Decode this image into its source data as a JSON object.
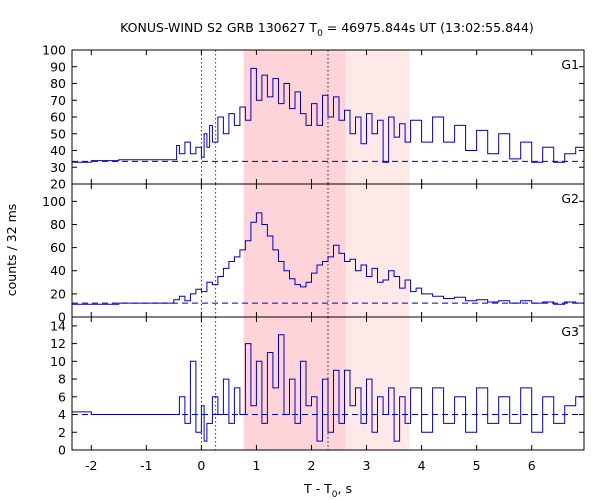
{
  "chart_data": {
    "type": "line",
    "title": {
      "prefix": "KONUS-WIND S2 GRB 130627 T",
      "sub": "0",
      "suffix": " = 46975.844s UT (13:02:55.844)"
    },
    "xlabel": {
      "prefix": "T - T",
      "sub": "0",
      "suffix": ", s"
    },
    "ylabel": "counts / 32 ms",
    "xlim": [
      -2.35,
      6.95
    ],
    "x_ticks": [
      -2,
      -1,
      0,
      1,
      2,
      3,
      4,
      5,
      6
    ],
    "colors": {
      "line": "#0000c0",
      "band_light": "#ffe8e8",
      "band_dark": "#ffd4d8",
      "frame": "#000000",
      "guides": "#000000"
    },
    "shaded_intervals": [
      {
        "x": [
          0.77,
          3.78
        ],
        "shade": "light"
      },
      {
        "x": [
          0.77,
          2.62
        ],
        "shade": "dark"
      }
    ],
    "vertical_markers": [
      0.0,
      0.26,
      2.3
    ],
    "grid": false,
    "panels": [
      {
        "label": "G1",
        "ylim": [
          20,
          100
        ],
        "y_ticks": [
          20,
          30,
          40,
          50,
          60,
          70,
          80,
          90,
          100
        ],
        "background_level": 33.5,
        "series": [
          {
            "x": -2.35,
            "y": 33
          },
          {
            "x": -2.0,
            "y": 34
          },
          {
            "x": -1.5,
            "y": 34.5
          },
          {
            "x": -1.0,
            "y": 34.5
          },
          {
            "x": -0.5,
            "y": 34.5
          },
          {
            "x": -0.45,
            "y": 43
          },
          {
            "x": -0.4,
            "y": 38
          },
          {
            "x": -0.3,
            "y": 45
          },
          {
            "x": -0.2,
            "y": 38
          },
          {
            "x": -0.1,
            "y": 42
          },
          {
            "x": 0.0,
            "y": 36
          },
          {
            "x": 0.05,
            "y": 50
          },
          {
            "x": 0.1,
            "y": 42
          },
          {
            "x": 0.15,
            "y": 55
          },
          {
            "x": 0.2,
            "y": 45
          },
          {
            "x": 0.3,
            "y": 60
          },
          {
            "x": 0.4,
            "y": 50
          },
          {
            "x": 0.5,
            "y": 62
          },
          {
            "x": 0.6,
            "y": 55
          },
          {
            "x": 0.7,
            "y": 66
          },
          {
            "x": 0.8,
            "y": 58
          },
          {
            "x": 0.9,
            "y": 89
          },
          {
            "x": 1.0,
            "y": 70
          },
          {
            "x": 1.1,
            "y": 85
          },
          {
            "x": 1.2,
            "y": 72
          },
          {
            "x": 1.3,
            "y": 83
          },
          {
            "x": 1.4,
            "y": 68
          },
          {
            "x": 1.5,
            "y": 80
          },
          {
            "x": 1.6,
            "y": 65
          },
          {
            "x": 1.7,
            "y": 75
          },
          {
            "x": 1.8,
            "y": 62
          },
          {
            "x": 1.9,
            "y": 55
          },
          {
            "x": 2.0,
            "y": 68
          },
          {
            "x": 2.1,
            "y": 55
          },
          {
            "x": 2.2,
            "y": 73
          },
          {
            "x": 2.3,
            "y": 60
          },
          {
            "x": 2.4,
            "y": 72
          },
          {
            "x": 2.5,
            "y": 58
          },
          {
            "x": 2.6,
            "y": 64
          },
          {
            "x": 2.7,
            "y": 50
          },
          {
            "x": 2.8,
            "y": 60
          },
          {
            "x": 2.9,
            "y": 44
          },
          {
            "x": 3.0,
            "y": 62
          },
          {
            "x": 3.1,
            "y": 50
          },
          {
            "x": 3.2,
            "y": 58
          },
          {
            "x": 3.3,
            "y": 33
          },
          {
            "x": 3.4,
            "y": 60
          },
          {
            "x": 3.5,
            "y": 48
          },
          {
            "x": 3.6,
            "y": 56
          },
          {
            "x": 3.7,
            "y": 45
          },
          {
            "x": 3.8,
            "y": 58
          },
          {
            "x": 4.0,
            "y": 45
          },
          {
            "x": 4.2,
            "y": 60
          },
          {
            "x": 4.4,
            "y": 45
          },
          {
            "x": 4.6,
            "y": 55
          },
          {
            "x": 4.8,
            "y": 40
          },
          {
            "x": 5.0,
            "y": 52
          },
          {
            "x": 5.2,
            "y": 38
          },
          {
            "x": 5.4,
            "y": 50
          },
          {
            "x": 5.6,
            "y": 35
          },
          {
            "x": 5.8,
            "y": 45
          },
          {
            "x": 6.0,
            "y": 33
          },
          {
            "x": 6.2,
            "y": 42
          },
          {
            "x": 6.4,
            "y": 33
          },
          {
            "x": 6.6,
            "y": 38
          },
          {
            "x": 6.8,
            "y": 42
          },
          {
            "x": 6.95,
            "y": 35
          }
        ]
      },
      {
        "label": "G2",
        "ylim": [
          0,
          115
        ],
        "y_ticks": [
          0,
          20,
          40,
          60,
          80,
          100
        ],
        "background_level": 12,
        "series": [
          {
            "x": -2.35,
            "y": 11
          },
          {
            "x": -1.5,
            "y": 12
          },
          {
            "x": -0.6,
            "y": 12
          },
          {
            "x": -0.5,
            "y": 15
          },
          {
            "x": -0.4,
            "y": 18
          },
          {
            "x": -0.3,
            "y": 14
          },
          {
            "x": -0.2,
            "y": 20
          },
          {
            "x": -0.1,
            "y": 24
          },
          {
            "x": 0.0,
            "y": 22
          },
          {
            "x": 0.1,
            "y": 30
          },
          {
            "x": 0.2,
            "y": 28
          },
          {
            "x": 0.3,
            "y": 35
          },
          {
            "x": 0.4,
            "y": 42
          },
          {
            "x": 0.5,
            "y": 48
          },
          {
            "x": 0.6,
            "y": 52
          },
          {
            "x": 0.7,
            "y": 58
          },
          {
            "x": 0.8,
            "y": 66
          },
          {
            "x": 0.9,
            "y": 82
          },
          {
            "x": 1.0,
            "y": 90
          },
          {
            "x": 1.1,
            "y": 80
          },
          {
            "x": 1.2,
            "y": 70
          },
          {
            "x": 1.3,
            "y": 58
          },
          {
            "x": 1.4,
            "y": 48
          },
          {
            "x": 1.5,
            "y": 40
          },
          {
            "x": 1.6,
            "y": 33
          },
          {
            "x": 1.7,
            "y": 28
          },
          {
            "x": 1.8,
            "y": 26
          },
          {
            "x": 1.9,
            "y": 30
          },
          {
            "x": 2.0,
            "y": 38
          },
          {
            "x": 2.1,
            "y": 45
          },
          {
            "x": 2.2,
            "y": 48
          },
          {
            "x": 2.3,
            "y": 52
          },
          {
            "x": 2.4,
            "y": 62
          },
          {
            "x": 2.5,
            "y": 55
          },
          {
            "x": 2.6,
            "y": 48
          },
          {
            "x": 2.7,
            "y": 50
          },
          {
            "x": 2.8,
            "y": 40
          },
          {
            "x": 2.9,
            "y": 45
          },
          {
            "x": 3.0,
            "y": 35
          },
          {
            "x": 3.1,
            "y": 42
          },
          {
            "x": 3.2,
            "y": 30
          },
          {
            "x": 3.3,
            "y": 32
          },
          {
            "x": 3.4,
            "y": 40
          },
          {
            "x": 3.5,
            "y": 35
          },
          {
            "x": 3.6,
            "y": 25
          },
          {
            "x": 3.7,
            "y": 32
          },
          {
            "x": 3.8,
            "y": 22
          },
          {
            "x": 3.9,
            "y": 25
          },
          {
            "x": 4.0,
            "y": 20
          },
          {
            "x": 4.2,
            "y": 18
          },
          {
            "x": 4.4,
            "y": 16
          },
          {
            "x": 4.6,
            "y": 17
          },
          {
            "x": 4.8,
            "y": 14
          },
          {
            "x": 5.0,
            "y": 15
          },
          {
            "x": 5.2,
            "y": 13
          },
          {
            "x": 5.4,
            "y": 14
          },
          {
            "x": 5.6,
            "y": 12
          },
          {
            "x": 5.8,
            "y": 14
          },
          {
            "x": 6.0,
            "y": 12
          },
          {
            "x": 6.2,
            "y": 13
          },
          {
            "x": 6.4,
            "y": 11
          },
          {
            "x": 6.6,
            "y": 13
          },
          {
            "x": 6.8,
            "y": 12
          },
          {
            "x": 6.95,
            "y": 13
          }
        ]
      },
      {
        "label": "G3",
        "ylim": [
          0,
          15
        ],
        "y_ticks": [
          0,
          2,
          4,
          6,
          8,
          10,
          12,
          14
        ],
        "background_level": 4,
        "series": [
          {
            "x": -2.35,
            "y": 4.3
          },
          {
            "x": -2.0,
            "y": 4
          },
          {
            "x": -1.0,
            "y": 4
          },
          {
            "x": -0.5,
            "y": 4
          },
          {
            "x": -0.4,
            "y": 6
          },
          {
            "x": -0.3,
            "y": 3
          },
          {
            "x": -0.2,
            "y": 10
          },
          {
            "x": -0.1,
            "y": 2
          },
          {
            "x": 0.0,
            "y": 5
          },
          {
            "x": 0.05,
            "y": 1
          },
          {
            "x": 0.1,
            "y": 3
          },
          {
            "x": 0.2,
            "y": 6
          },
          {
            "x": 0.3,
            "y": 4
          },
          {
            "x": 0.4,
            "y": 8
          },
          {
            "x": 0.5,
            "y": 3
          },
          {
            "x": 0.6,
            "y": 7
          },
          {
            "x": 0.7,
            "y": 4
          },
          {
            "x": 0.8,
            "y": 12
          },
          {
            "x": 0.9,
            "y": 5
          },
          {
            "x": 1.0,
            "y": 10
          },
          {
            "x": 1.1,
            "y": 3
          },
          {
            "x": 1.2,
            "y": 11
          },
          {
            "x": 1.3,
            "y": 7
          },
          {
            "x": 1.4,
            "y": 13
          },
          {
            "x": 1.5,
            "y": 4
          },
          {
            "x": 1.6,
            "y": 8
          },
          {
            "x": 1.7,
            "y": 3
          },
          {
            "x": 1.8,
            "y": 10
          },
          {
            "x": 1.9,
            "y": 5
          },
          {
            "x": 2.0,
            "y": 6
          },
          {
            "x": 2.1,
            "y": 1
          },
          {
            "x": 2.2,
            "y": 8
          },
          {
            "x": 2.3,
            "y": 2
          },
          {
            "x": 2.4,
            "y": 9
          },
          {
            "x": 2.5,
            "y": 3
          },
          {
            "x": 2.6,
            "y": 9
          },
          {
            "x": 2.7,
            "y": 5
          },
          {
            "x": 2.8,
            "y": 7
          },
          {
            "x": 2.9,
            "y": 3
          },
          {
            "x": 3.0,
            "y": 8
          },
          {
            "x": 3.1,
            "y": 2
          },
          {
            "x": 3.2,
            "y": 6
          },
          {
            "x": 3.3,
            "y": 4
          },
          {
            "x": 3.4,
            "y": 7
          },
          {
            "x": 3.5,
            "y": 1
          },
          {
            "x": 3.6,
            "y": 6
          },
          {
            "x": 3.7,
            "y": 3
          },
          {
            "x": 3.8,
            "y": 7
          },
          {
            "x": 4.0,
            "y": 2
          },
          {
            "x": 4.2,
            "y": 7
          },
          {
            "x": 4.4,
            "y": 3
          },
          {
            "x": 4.6,
            "y": 6
          },
          {
            "x": 4.8,
            "y": 2
          },
          {
            "x": 5.0,
            "y": 7
          },
          {
            "x": 5.2,
            "y": 3
          },
          {
            "x": 5.4,
            "y": 6
          },
          {
            "x": 5.6,
            "y": 3
          },
          {
            "x": 5.8,
            "y": 7
          },
          {
            "x": 6.0,
            "y": 2
          },
          {
            "x": 6.2,
            "y": 6
          },
          {
            "x": 6.4,
            "y": 3
          },
          {
            "x": 6.6,
            "y": 5
          },
          {
            "x": 6.8,
            "y": 6
          },
          {
            "x": 6.95,
            "y": 6
          }
        ]
      }
    ]
  }
}
